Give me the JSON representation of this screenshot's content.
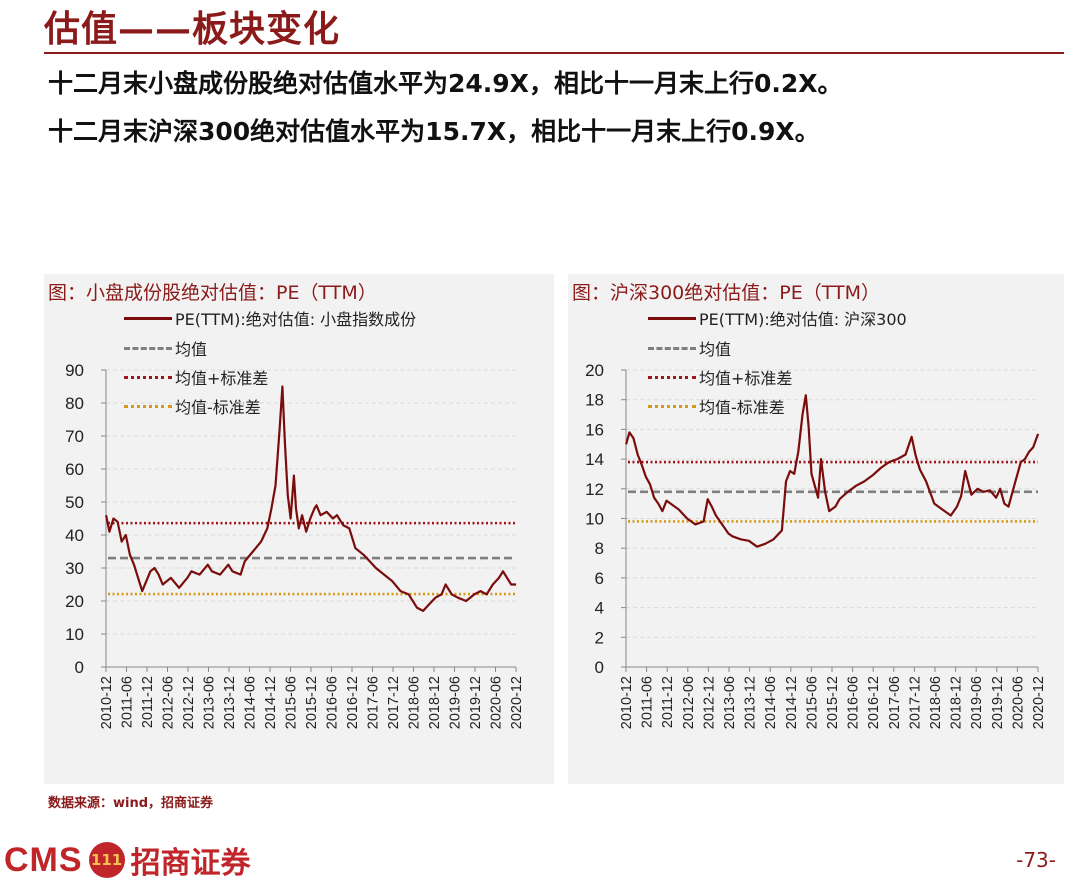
{
  "page": {
    "title": "估值——板块变化",
    "summary": [
      "十二月末小盘成份股绝对估值水平为24.9X，相比十一月末上行0.2X。",
      "十二月末沪深300绝对估值水平为15.7X，相比十一月末上行0.9X。"
    ],
    "source": "数据来源：wind，招商证券",
    "logo_text": "CMS",
    "logo_badge": "111",
    "logo_name": "招商证券",
    "page_number": "-73-"
  },
  "colors": {
    "pe": "#7a0c0c",
    "mean": "#7f7f7f",
    "plus": "#a0141b",
    "minus": "#d49a1a",
    "grid": "#d9d9d9"
  },
  "chart_data": [
    {
      "type": "line",
      "title": "图：小盘成份股绝对估值：PE（TTM）",
      "legend": [
        "PE(TTM):绝对估值: 小盘指数成份",
        "均值",
        "均值+标准差",
        "均值-标准差"
      ],
      "ylim": [
        0,
        90
      ],
      "yticks": [
        "0",
        "10",
        "20",
        "30",
        "40",
        "50",
        "60",
        "70",
        "80",
        "90"
      ],
      "x_labels": [
        "2010-12",
        "2011-06",
        "2011-12",
        "2012-06",
        "2012-12",
        "2013-06",
        "2013-12",
        "2014-06",
        "2014-12",
        "2015-06",
        "2015-12",
        "2016-06",
        "2016-12",
        "2017-06",
        "2017-12",
        "2018-06",
        "2018-12",
        "2019-06",
        "2019-12",
        "2020-06",
        "2020-12"
      ],
      "x_start": 2010.917,
      "x_end": 2020.917,
      "series": [
        {
          "name": "PE(TTM):绝对估值: 小盘指数成份",
          "x": [
            2010.92,
            2011.0,
            2011.1,
            2011.2,
            2011.3,
            2011.4,
            2011.5,
            2011.6,
            2011.7,
            2011.8,
            2011.9,
            2012.0,
            2012.1,
            2012.2,
            2012.3,
            2012.5,
            2012.7,
            2012.9,
            2013.0,
            2013.2,
            2013.4,
            2013.5,
            2013.7,
            2013.9,
            2014.0,
            2014.2,
            2014.3,
            2014.5,
            2014.7,
            2014.85,
            2014.95,
            2015.05,
            2015.15,
            2015.22,
            2015.28,
            2015.35,
            2015.42,
            2015.5,
            2015.55,
            2015.62,
            2015.7,
            2015.8,
            2015.9,
            2016.0,
            2016.05,
            2016.15,
            2016.3,
            2016.45,
            2016.55,
            2016.7,
            2016.85,
            2017.0,
            2017.2,
            2017.35,
            2017.5,
            2017.7,
            2017.9,
            2018.1,
            2018.3,
            2018.5,
            2018.65,
            2018.8,
            2018.95,
            2019.1,
            2019.2,
            2019.35,
            2019.5,
            2019.7,
            2019.9,
            2020.05,
            2020.2,
            2020.35,
            2020.5,
            2020.6,
            2020.7,
            2020.8,
            2020.92
          ],
          "values": [
            46,
            41,
            45,
            44,
            38,
            40,
            34,
            31,
            27,
            23,
            26,
            29,
            30,
            28,
            25,
            27,
            24,
            27,
            29,
            28,
            31,
            29,
            28,
            31,
            29,
            28,
            32,
            35,
            38,
            42,
            48,
            55,
            72,
            85,
            68,
            52,
            45,
            58,
            48,
            42,
            46,
            41,
            45,
            48,
            49,
            46,
            47,
            45,
            46,
            43,
            42,
            36,
            34,
            32,
            30,
            28,
            26,
            23,
            22,
            18,
            17,
            19,
            21,
            22,
            25,
            22,
            21,
            20,
            22,
            23,
            22,
            25,
            27,
            29,
            27,
            25,
            25
          ]
        },
        {
          "name": "均值",
          "constant": 33
        },
        {
          "name": "均值+标准差",
          "constant": 43.6
        },
        {
          "name": "均值-标准差",
          "constant": 22.1
        }
      ]
    },
    {
      "type": "line",
      "title": "图：沪深300绝对估值：PE（TTM）",
      "legend": [
        "PE(TTM):绝对估值: 沪深300",
        "均值",
        "均值+标准差",
        "均值-标准差"
      ],
      "ylim": [
        0,
        20
      ],
      "yticks": [
        "0",
        "2",
        "4",
        "6",
        "8",
        "10",
        "12",
        "14",
        "16",
        "18",
        "20"
      ],
      "x_labels": [
        "2010-12",
        "2011-06",
        "2011-12",
        "2012-06",
        "2012-12",
        "2013-06",
        "2013-12",
        "2014-06",
        "2014-12",
        "2015-06",
        "2015-12",
        "2016-06",
        "2016-12",
        "2017-06",
        "2017-12",
        "2018-06",
        "2018-12",
        "2019-06",
        "2019-12",
        "2020-06",
        "2020-12"
      ],
      "x_start": 2010.917,
      "x_end": 2020.917,
      "series": [
        {
          "name": "PE(TTM):绝对估值: 沪深300",
          "x": [
            2010.92,
            2011.0,
            2011.1,
            2011.2,
            2011.3,
            2011.4,
            2011.5,
            2011.6,
            2011.7,
            2011.8,
            2011.9,
            2012.0,
            2012.2,
            2012.4,
            2012.6,
            2012.8,
            2012.9,
            2013.0,
            2013.1,
            2013.3,
            2013.4,
            2013.5,
            2013.7,
            2013.9,
            2014.1,
            2014.3,
            2014.5,
            2014.7,
            2014.8,
            2014.9,
            2015.0,
            2015.1,
            2015.2,
            2015.28,
            2015.35,
            2015.42,
            2015.5,
            2015.58,
            2015.65,
            2015.75,
            2015.85,
            2016.0,
            2016.1,
            2016.3,
            2016.5,
            2016.7,
            2016.9,
            2017.1,
            2017.3,
            2017.5,
            2017.7,
            2017.85,
            2017.95,
            2018.05,
            2018.2,
            2018.4,
            2018.6,
            2018.8,
            2018.95,
            2019.05,
            2019.15,
            2019.3,
            2019.45,
            2019.6,
            2019.75,
            2019.9,
            2020.0,
            2020.1,
            2020.2,
            2020.35,
            2020.5,
            2020.6,
            2020.7,
            2020.8,
            2020.92
          ],
          "values": [
            15.0,
            15.8,
            15.4,
            14.3,
            13.6,
            12.8,
            12.3,
            11.4,
            11.0,
            10.5,
            11.2,
            11.0,
            10.6,
            10.0,
            9.6,
            9.8,
            11.3,
            10.8,
            10.2,
            9.4,
            9.0,
            8.8,
            8.6,
            8.5,
            8.1,
            8.3,
            8.6,
            9.2,
            12.5,
            13.2,
            13.0,
            14.5,
            17.0,
            18.3,
            16.2,
            13.0,
            12.2,
            11.4,
            14.0,
            11.8,
            10.5,
            10.8,
            11.3,
            11.8,
            12.2,
            12.5,
            12.9,
            13.4,
            13.8,
            14.0,
            14.3,
            15.5,
            14.2,
            13.3,
            12.5,
            11.0,
            10.6,
            10.2,
            10.8,
            11.5,
            13.2,
            11.6,
            12.0,
            11.8,
            11.9,
            11.4,
            12.0,
            11.0,
            10.8,
            12.3,
            13.8,
            14.0,
            14.5,
            14.8,
            15.7
          ]
        },
        {
          "name": "均值",
          "constant": 11.8
        },
        {
          "name": "均值+标准差",
          "constant": 13.8
        },
        {
          "name": "均值-标准差",
          "constant": 9.8
        }
      ]
    }
  ]
}
